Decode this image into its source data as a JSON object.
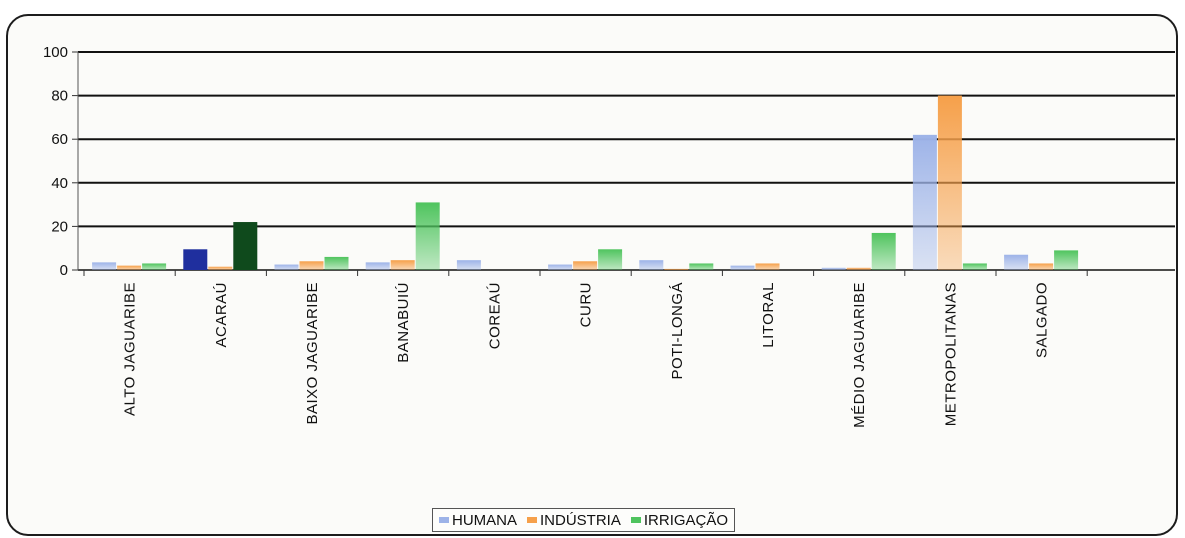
{
  "chart_data": {
    "type": "bar",
    "categories": [
      "ALTO JAGUARIBE",
      "ACARAÚ",
      "BAIXO JAGUARIBE",
      "BANABUIÚ",
      "COREAÚ",
      "CURU",
      "POTI-LONGÁ",
      "LITORAL",
      "MÉDIO JAGUARIBE",
      "METROPOLITANAS",
      "SALGADO"
    ],
    "series": [
      {
        "name": "HUMANA",
        "color": "#9db3e8",
        "values": [
          3.5,
          9.5,
          2.5,
          3.5,
          4.5,
          2.5,
          4.5,
          2,
          1,
          62,
          7
        ]
      },
      {
        "name": "INDÚSTRIA",
        "color": "#f6a04a",
        "values": [
          2,
          1.5,
          4,
          4.5,
          0,
          4,
          0.5,
          3,
          1,
          80,
          3
        ]
      },
      {
        "name": "IRRIGAÇÃO",
        "color": "#4fc45e",
        "values": [
          3,
          22,
          6,
          31,
          0,
          9.5,
          3,
          0,
          17,
          3,
          9
        ]
      }
    ],
    "ylim": [
      0,
      100
    ],
    "yticks": [
      0,
      20,
      40,
      60,
      80,
      100
    ],
    "grid": true,
    "legend": "bottom"
  }
}
